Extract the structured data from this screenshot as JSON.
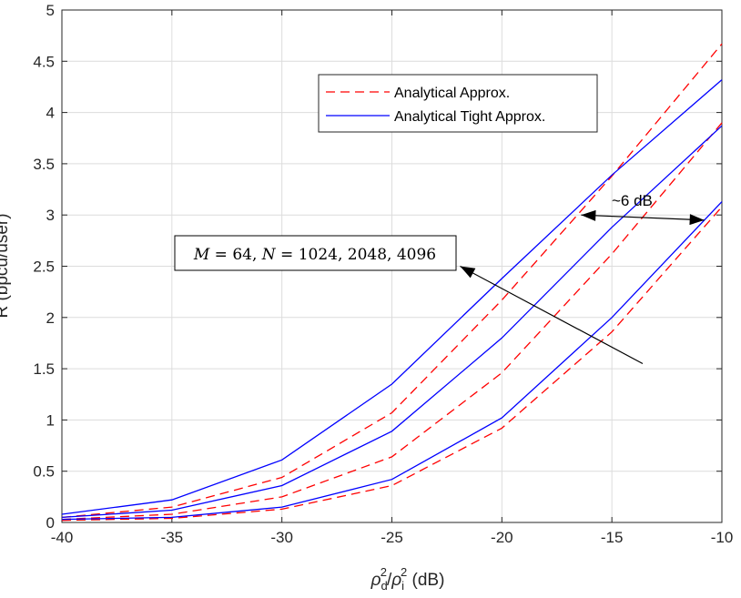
{
  "chart_data": {
    "type": "line",
    "title": "",
    "xlabel_parts": {
      "rho": "ρ",
      "d_sub": "d",
      "i_sub": "i",
      "sup": "2",
      "slash": "/",
      "unit": " (dB)"
    },
    "ylabel": "R (bpcu/user)",
    "xlim": [
      -40,
      -10
    ],
    "ylim": [
      0,
      5
    ],
    "xticks": [
      -40,
      -35,
      -30,
      -25,
      -20,
      -15,
      -10
    ],
    "yticks": [
      0,
      0.5,
      1,
      1.5,
      2,
      2.5,
      3,
      3.5,
      4,
      4.5,
      5
    ],
    "ytick_labels": [
      "0",
      "0.5",
      "1",
      "1.5",
      "2",
      "2.5",
      "3",
      "3.5",
      "4",
      "4.5",
      "5"
    ],
    "xtick_labels": [
      "-40",
      "-35",
      "-30",
      "-25",
      "-20",
      "-15",
      "-10"
    ],
    "grid": true,
    "legend_position": "top-right",
    "legend": [
      {
        "label": "Analytical Approx.",
        "color": "#ff0000",
        "style": "dashed"
      },
      {
        "label": "Analytical Tight Approx.",
        "color": "#0000ff",
        "style": "solid"
      }
    ],
    "x": [
      -40,
      -35,
      -30,
      -25,
      -20,
      -15,
      -10
    ],
    "series": [
      {
        "group": "Analytical Approx.",
        "N": 4096,
        "color": "#ff0000",
        "style": "dashed",
        "values": [
          0.05,
          0.15,
          0.44,
          1.07,
          2.17,
          3.38,
          4.67
        ]
      },
      {
        "group": "Analytical Approx.",
        "N": 2048,
        "color": "#ff0000",
        "style": "dashed",
        "values": [
          0.03,
          0.08,
          0.25,
          0.64,
          1.46,
          2.62,
          3.9
        ]
      },
      {
        "group": "Analytical Approx.",
        "N": 1024,
        "color": "#ff0000",
        "style": "dashed",
        "values": [
          0.02,
          0.04,
          0.13,
          0.36,
          0.92,
          1.86,
          3.08
        ]
      },
      {
        "group": "Analytical Tight Approx.",
        "N": 4096,
        "color": "#0000ff",
        "style": "solid",
        "values": [
          0.08,
          0.22,
          0.61,
          1.35,
          2.38,
          3.39,
          4.32
        ]
      },
      {
        "group": "Analytical Tight Approx.",
        "N": 2048,
        "color": "#0000ff",
        "style": "solid",
        "values": [
          0.05,
          0.12,
          0.36,
          0.89,
          1.8,
          2.88,
          3.87
        ]
      },
      {
        "group": "Analytical Tight Approx.",
        "N": 1024,
        "color": "#0000ff",
        "style": "solid",
        "values": [
          0.03,
          0.05,
          0.15,
          0.42,
          1.02,
          2.0,
          3.13
        ]
      }
    ],
    "annotations": {
      "box_text": "M = 64, N = 1024, 2048, 4096",
      "box_parts": {
        "m": "M",
        "eq1": " = 64, ",
        "n": "N",
        "eq2": " = 1024, 2048, 4096"
      },
      "db_text": "~6 dB",
      "arrow_from": [
        -13.6,
        1.55
      ],
      "arrow_to": [
        -21.9,
        2.5
      ],
      "db_arrow_from": [
        -16.4,
        3.0
      ],
      "db_arrow_to": [
        -10.8,
        2.95
      ]
    }
  }
}
